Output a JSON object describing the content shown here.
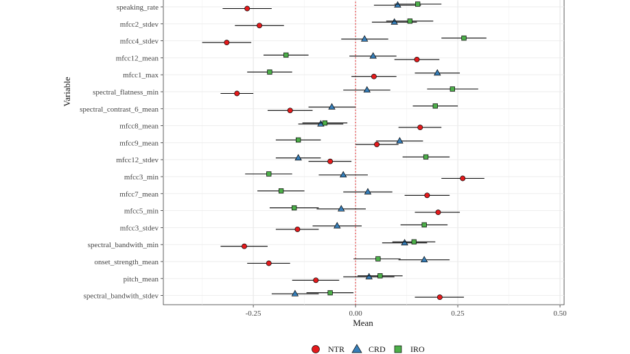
{
  "chart_data": {
    "type": "scatter",
    "subtype": "dot-and-whisker",
    "xlabel": "Mean",
    "ylabel": "Variable",
    "xlim": [
      -0.47,
      0.51
    ],
    "x_ticks": [
      -0.25,
      0.0,
      0.25,
      0.5
    ],
    "x_tick_labels": [
      "-0.25",
      "0.00",
      "0.25",
      "0.50"
    ],
    "reference_line": {
      "x": 0,
      "style": "dotted",
      "color": "#e41a1c"
    },
    "grid": true,
    "legend_position": "bottom",
    "categories": [
      "speaking_rate",
      "mfcc2_stdev",
      "mfcc4_stdev",
      "mfcc12_mean",
      "mfcc1_max",
      "spectral_flatness_min",
      "spectral_contrast_6_mean",
      "mfcc8_mean",
      "mfcc9_mean",
      "mfcc12_stdev",
      "mfcc3_min",
      "mfcc7_mean",
      "mfcc5_min",
      "mfcc3_stdev",
      "spectral_bandwith_min",
      "onset_strength_mean",
      "pitch_mean",
      "spectral_bandwith_stdev"
    ],
    "series": [
      {
        "name": "NTR",
        "color": "#e41a1c",
        "marker": "circle",
        "means": [
          -0.265,
          -0.235,
          -0.315,
          0.15,
          0.045,
          -0.29,
          -0.16,
          0.158,
          0.052,
          -0.062,
          0.262,
          0.175,
          0.202,
          -0.142,
          -0.272,
          -0.212,
          -0.097,
          0.206
        ],
        "lower": [
          -0.325,
          -0.295,
          -0.375,
          0.095,
          -0.01,
          -0.33,
          -0.215,
          0.105,
          0.0,
          -0.115,
          0.21,
          0.12,
          0.145,
          -0.195,
          -0.33,
          -0.265,
          -0.155,
          0.145
        ],
        "upper": [
          -0.205,
          -0.175,
          -0.255,
          0.205,
          0.1,
          -0.25,
          -0.105,
          0.21,
          0.105,
          -0.01,
          0.315,
          0.23,
          0.255,
          -0.09,
          -0.215,
          -0.16,
          -0.04,
          0.265
        ]
      },
      {
        "name": "CRD",
        "color": "#377eb8",
        "marker": "triangle",
        "means": [
          0.103,
          0.095,
          0.022,
          0.043,
          0.2,
          0.028,
          -0.058,
          -0.085,
          0.108,
          -0.14,
          -0.03,
          0.03,
          -0.035,
          -0.045,
          0.12,
          0.168,
          0.033,
          -0.148
        ],
        "lower": [
          0.045,
          0.04,
          -0.035,
          -0.015,
          0.145,
          -0.03,
          -0.115,
          -0.14,
          0.05,
          -0.195,
          -0.09,
          -0.03,
          -0.095,
          -0.105,
          0.065,
          0.105,
          -0.03,
          -0.205
        ],
        "upper": [
          0.16,
          0.15,
          0.08,
          0.1,
          0.255,
          0.085,
          0.0,
          -0.03,
          0.165,
          -0.085,
          0.03,
          0.09,
          0.025,
          0.015,
          0.175,
          0.23,
          0.095,
          -0.09
        ]
      },
      {
        "name": "IRO",
        "color": "#4daf4a",
        "marker": "square",
        "means": [
          0.152,
          0.133,
          0.265,
          -0.17,
          -0.21,
          0.237,
          0.195,
          -0.075,
          -0.14,
          0.172,
          -0.212,
          -0.182,
          -0.15,
          0.168,
          0.143,
          0.055,
          0.06,
          -0.062
        ],
        "lower": [
          0.095,
          0.075,
          0.21,
          -0.225,
          -0.265,
          0.175,
          0.14,
          -0.13,
          -0.195,
          0.115,
          -0.27,
          -0.24,
          -0.21,
          0.11,
          0.09,
          -0.005,
          0.005,
          -0.12
        ],
        "upper": [
          0.21,
          0.19,
          0.32,
          -0.115,
          -0.155,
          0.3,
          0.25,
          -0.02,
          -0.085,
          0.23,
          -0.155,
          -0.125,
          -0.09,
          0.225,
          0.195,
          0.11,
          0.115,
          -0.005
        ]
      }
    ]
  }
}
